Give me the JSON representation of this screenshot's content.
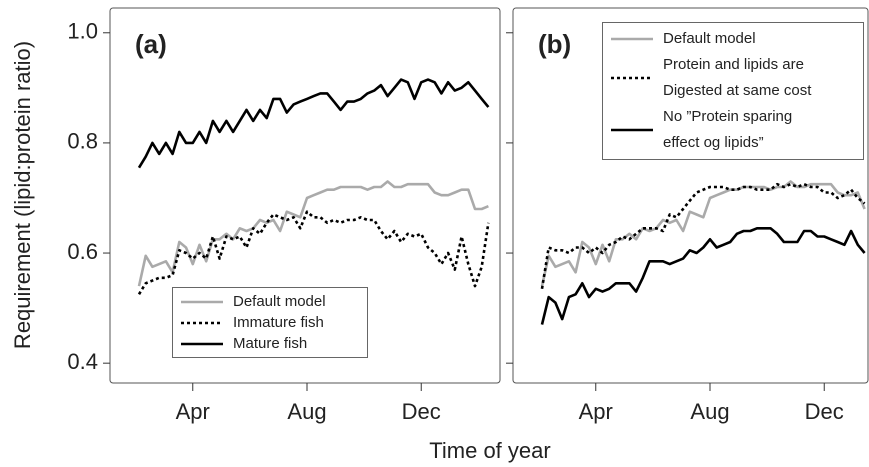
{
  "y_label": "Requirement (lipid:protein ratio)",
  "x_label": "Time of year",
  "chart_data": [
    {
      "type": "line",
      "panel_label": "(a)",
      "categories": [
        null,
        null,
        null,
        null,
        null,
        null,
        null,
        null,
        "Apr",
        null,
        null,
        null,
        null,
        null,
        null,
        null,
        null,
        null,
        null,
        null,
        null,
        null,
        null,
        null,
        null,
        "Aug",
        null,
        null,
        null,
        null,
        null,
        null,
        null,
        null,
        null,
        null,
        null,
        null,
        null,
        null,
        null,
        null,
        "Dec",
        null,
        null,
        null,
        null,
        null,
        null,
        null,
        null,
        null,
        null
      ],
      "ylim": [
        0.364,
        1.045
      ],
      "yticks": [
        0.4,
        0.6,
        0.8,
        {
          "value": 1,
          "label": "1.0"
        }
      ],
      "show_ytick_labels": true,
      "legend": "lower center",
      "series": [
        {
          "name": "Default model",
          "color": "#aaaaaa",
          "style": "solid",
          "values": [
            0.54,
            0.595,
            0.575,
            0.58,
            0.585,
            0.565,
            0.62,
            0.61,
            0.58,
            0.615,
            0.585,
            0.625,
            0.625,
            0.635,
            0.625,
            0.645,
            0.64,
            0.645,
            0.66,
            0.655,
            0.66,
            0.64,
            0.675,
            0.67,
            0.665,
            0.7,
            0.705,
            0.71,
            0.715,
            0.715,
            0.72,
            0.72,
            0.72,
            0.72,
            0.715,
            0.72,
            0.72,
            0.73,
            0.72,
            0.72,
            0.725,
            0.725,
            0.725,
            0.725,
            0.71,
            0.705,
            0.705,
            0.71,
            0.715,
            0.715,
            0.68,
            0.68,
            0.685
          ]
        },
        {
          "name": "Immature fish",
          "color": "#000000",
          "style": "dotted",
          "values": [
            0.525,
            0.545,
            0.55,
            0.555,
            0.555,
            0.56,
            0.605,
            0.6,
            0.59,
            0.6,
            0.59,
            0.63,
            0.59,
            0.63,
            0.625,
            0.63,
            0.61,
            0.645,
            0.635,
            0.655,
            0.67,
            0.665,
            0.66,
            0.665,
            0.645,
            0.675,
            0.665,
            0.665,
            0.655,
            0.66,
            0.655,
            0.66,
            0.66,
            0.665,
            0.66,
            0.66,
            0.64,
            0.625,
            0.64,
            0.62,
            0.635,
            0.63,
            0.635,
            0.61,
            0.6,
            0.58,
            0.6,
            0.57,
            0.63,
            0.58,
            0.54,
            0.575,
            0.655
          ]
        },
        {
          "name": "Mature fish",
          "color": "#000000",
          "style": "solid",
          "values": [
            0.755,
            0.775,
            0.8,
            0.78,
            0.8,
            0.78,
            0.82,
            0.8,
            0.8,
            0.82,
            0.8,
            0.84,
            0.82,
            0.84,
            0.82,
            0.84,
            0.86,
            0.84,
            0.86,
            0.845,
            0.88,
            0.88,
            0.855,
            0.87,
            0.875,
            0.88,
            0.885,
            0.89,
            0.89,
            0.875,
            0.86,
            0.875,
            0.875,
            0.88,
            0.89,
            0.895,
            0.905,
            0.885,
            0.9,
            0.915,
            0.91,
            0.88,
            0.91,
            0.915,
            0.91,
            0.89,
            0.91,
            0.895,
            0.9,
            0.91,
            0.895,
            0.88,
            0.865
          ]
        }
      ]
    },
    {
      "type": "line",
      "panel_label": "(b)",
      "categories": [
        null,
        null,
        null,
        null,
        null,
        null,
        null,
        null,
        "Apr",
        null,
        null,
        null,
        null,
        null,
        null,
        null,
        null,
        null,
        null,
        null,
        null,
        null,
        null,
        null,
        null,
        "Aug",
        null,
        null,
        null,
        null,
        null,
        null,
        null,
        null,
        null,
        null,
        null,
        null,
        null,
        null,
        null,
        null,
        "Dec",
        null,
        null,
        null,
        null,
        null,
        null
      ],
      "ylim": [
        0.364,
        1.045
      ],
      "yticks": [
        0.4,
        0.6,
        0.8,
        1
      ],
      "show_ytick_labels": false,
      "legend": "upper right",
      "series": [
        {
          "name": "Default model",
          "color": "#aaaaaa",
          "style": "solid",
          "values": [
            0.54,
            0.595,
            0.575,
            0.58,
            0.585,
            0.565,
            0.62,
            0.61,
            0.58,
            0.615,
            0.585,
            0.625,
            0.625,
            0.635,
            0.625,
            0.645,
            0.64,
            0.645,
            0.66,
            0.655,
            0.66,
            0.64,
            0.675,
            0.67,
            0.665,
            0.7,
            0.705,
            0.71,
            0.715,
            0.715,
            0.72,
            0.72,
            0.72,
            0.72,
            0.715,
            0.72,
            0.72,
            0.73,
            0.72,
            0.72,
            0.725,
            0.725,
            0.725,
            0.725,
            0.71,
            0.705,
            0.705,
            0.71,
            0.68
          ]
        },
        {
          "name": "Protein and lipids are\nDigested at same cost",
          "color": "#000000",
          "style": "dotted",
          "values": [
            0.535,
            0.61,
            0.605,
            0.605,
            0.6,
            0.61,
            0.61,
            0.6,
            0.61,
            0.6,
            0.615,
            0.62,
            0.63,
            0.625,
            0.635,
            0.645,
            0.645,
            0.645,
            0.64,
            0.67,
            0.665,
            0.68,
            0.695,
            0.71,
            0.715,
            0.72,
            0.72,
            0.72,
            0.715,
            0.715,
            0.72,
            0.72,
            0.715,
            0.715,
            0.715,
            0.725,
            0.72,
            0.725,
            0.72,
            0.725,
            0.72,
            0.72,
            0.71,
            0.71,
            0.7,
            0.705,
            0.715,
            0.7,
            0.69
          ]
        },
        {
          "name": "No ”Protein sparing\neffect og lipids”",
          "color": "#000000",
          "style": "solid",
          "values": [
            0.47,
            0.52,
            0.51,
            0.48,
            0.52,
            0.525,
            0.545,
            0.52,
            0.535,
            0.53,
            0.535,
            0.545,
            0.545,
            0.545,
            0.53,
            0.555,
            0.585,
            0.585,
            0.585,
            0.58,
            0.585,
            0.59,
            0.605,
            0.6,
            0.61,
            0.625,
            0.61,
            0.615,
            0.62,
            0.635,
            0.64,
            0.64,
            0.645,
            0.645,
            0.645,
            0.635,
            0.62,
            0.62,
            0.62,
            0.64,
            0.64,
            0.63,
            0.63,
            0.625,
            0.62,
            0.615,
            0.64,
            0.615,
            0.6
          ]
        }
      ]
    }
  ]
}
